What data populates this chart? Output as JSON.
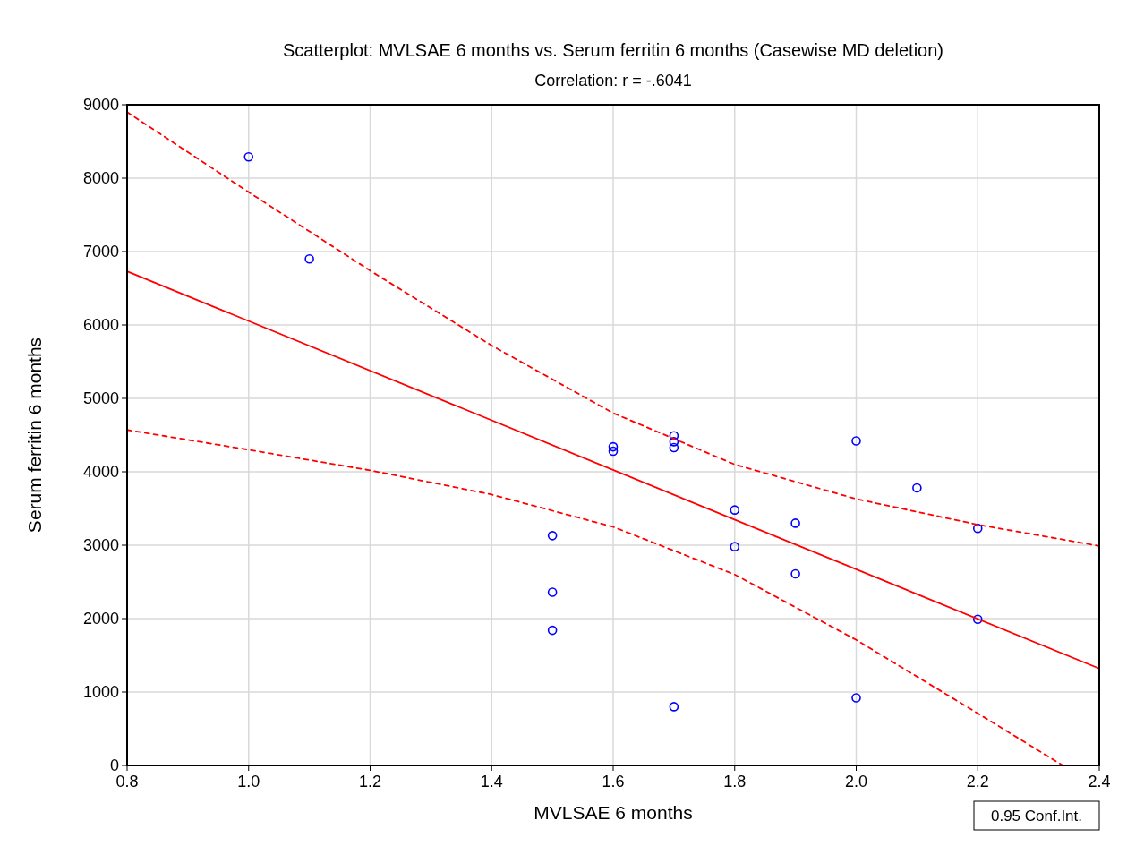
{
  "chart_data": {
    "type": "scatter",
    "title": "Scatterplot: MVLSAE 6 months vs. Serum ferritin 6 months (Casewise MD deletion)",
    "subtitle": "Correlation: r = -.6041",
    "xlabel": "MVLSAE 6 months",
    "ylabel": "Serum ferritin 6 months",
    "xlim": [
      0.8,
      2.4
    ],
    "xticks": [
      {
        "value": 0.8,
        "label": "0.8"
      },
      {
        "value": 1.0,
        "label": "1.0"
      },
      {
        "value": 1.2,
        "label": "1.2"
      },
      {
        "value": 1.4,
        "label": "1.4"
      },
      {
        "value": 1.6,
        "label": "1.6"
      },
      {
        "value": 1.8,
        "label": "1.8"
      },
      {
        "value": 2.0,
        "label": "2.0"
      },
      {
        "value": 2.2,
        "label": "2.2"
      },
      {
        "value": 2.4,
        "label": "2.4"
      }
    ],
    "ylim": [
      0,
      9000
    ],
    "yticks": [
      0,
      1000,
      2000,
      3000,
      4000,
      5000,
      6000,
      7000,
      8000,
      9000
    ],
    "grid": true,
    "annotations": [
      "0.95 Conf.Int."
    ],
    "series": [
      {
        "color": "#0000ff",
        "marker": "circle",
        "x": [
          1.0,
          1.1,
          1.5,
          1.5,
          1.5,
          1.6,
          1.6,
          1.7,
          1.7,
          1.7,
          1.7,
          1.8,
          1.8,
          1.9,
          1.9,
          2.0,
          2.0,
          2.1,
          2.2,
          2.2
        ],
        "values": [
          8290,
          6900,
          3130,
          2360,
          1840,
          4340,
          4280,
          4490,
          4410,
          4330,
          800,
          3480,
          2980,
          3300,
          2610,
          4420,
          920,
          3780,
          3230,
          1990
        ]
      },
      {
        "type": "line",
        "color": "#ff0000",
        "line_style": "solid",
        "x": [
          0.8,
          2.4
        ],
        "values": [
          6730,
          1320
        ]
      },
      {
        "type": "line",
        "color": "#ff0000",
        "line_style": "dashed",
        "x": [
          0.8,
          1.0,
          1.2,
          1.4,
          1.6,
          1.8,
          2.0,
          2.2,
          2.4
        ],
        "values": [
          8900,
          7810,
          6740,
          5720,
          4800,
          4100,
          3630,
          3280,
          2990
        ]
      },
      {
        "type": "line",
        "color": "#ff0000",
        "line_style": "dashed",
        "x": [
          0.8,
          1.0,
          1.2,
          1.4,
          1.6,
          1.8,
          2.0,
          2.2,
          2.34
        ],
        "values": [
          4570,
          4300,
          4020,
          3690,
          3250,
          2600,
          1710,
          710,
          0
        ]
      }
    ]
  }
}
